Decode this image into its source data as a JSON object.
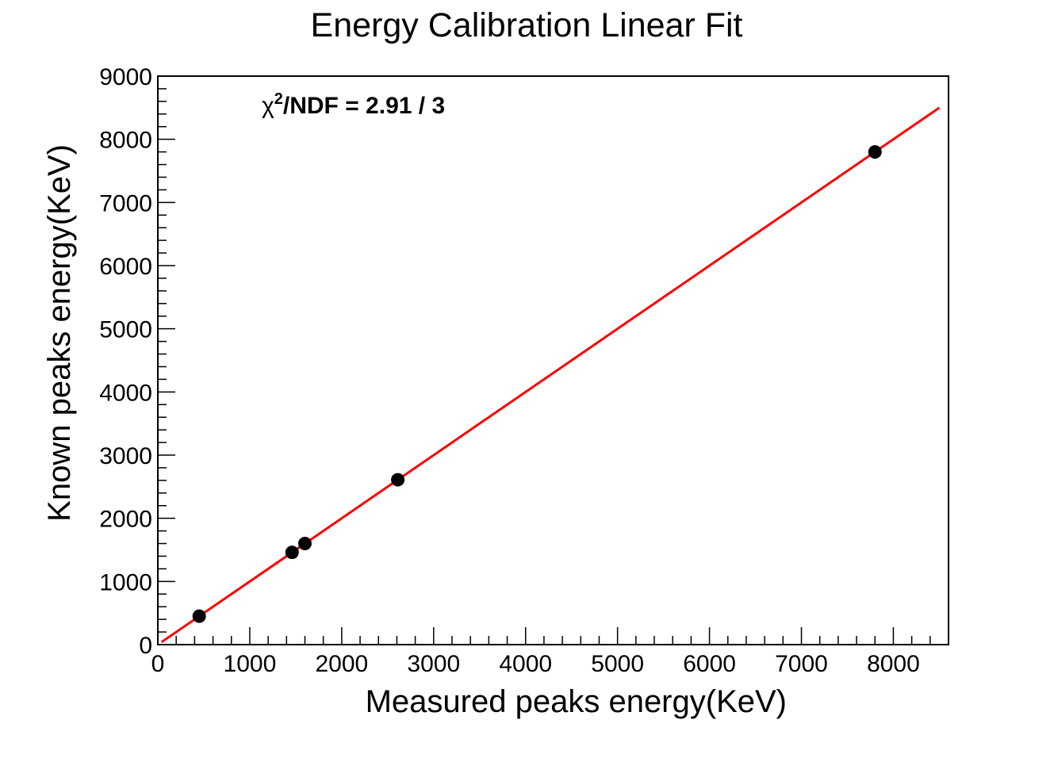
{
  "chart_data": {
    "type": "scatter",
    "title": "Energy Calibration Linear Fit",
    "xlabel": "Measured peaks energy(KeV)",
    "ylabel": "Known peaks energy(KeV)",
    "xlim": [
      0,
      8600
    ],
    "ylim": [
      0,
      9000
    ],
    "xticks": [
      "0",
      "1000",
      "2000",
      "3000",
      "4000",
      "5000",
      "6000",
      "7000",
      "8000"
    ],
    "yticks": [
      "0",
      "1000",
      "2000",
      "3000",
      "4000",
      "5000",
      "6000",
      "7000",
      "8000",
      "9000"
    ],
    "grid": false,
    "legend": "none",
    "annotation": {
      "symbol": "χ",
      "superscript": "2",
      "text": "/NDF = 2.91 / 3"
    },
    "series": [
      {
        "kind": "points",
        "x": [
          450,
          1460,
          1600,
          2610,
          7800
        ],
        "y": [
          450,
          1460,
          1600,
          2610,
          7800
        ],
        "color": "#000000"
      },
      {
        "kind": "fit-line",
        "x": [
          40,
          8500
        ],
        "y": [
          40,
          8500
        ],
        "color": "#ff0000"
      }
    ]
  }
}
